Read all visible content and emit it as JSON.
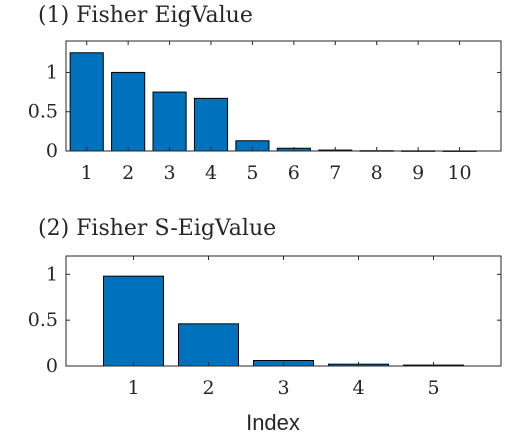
{
  "chart_data": [
    {
      "type": "bar",
      "title": "(1) Fisher EigValue",
      "xlabel": "",
      "ylabel": "",
      "categories": [
        "1",
        "2",
        "3",
        "4",
        "5",
        "6",
        "7",
        "8",
        "9",
        "10"
      ],
      "values": [
        1.25,
        1.0,
        0.75,
        0.67,
        0.13,
        0.035,
        0.012,
        0.004,
        0.002,
        0.001
      ],
      "ylim": [
        0,
        1.4
      ],
      "yticks": [
        "0",
        "0.5",
        "1"
      ],
      "grid": false,
      "bar_color": "#0072BD"
    },
    {
      "type": "bar",
      "title": "(2) Fisher S-EigValue",
      "xlabel": "Index",
      "ylabel": "",
      "categories": [
        "1",
        "2",
        "3",
        "4",
        "5"
      ],
      "values": [
        0.98,
        0.46,
        0.06,
        0.02,
        0.01
      ],
      "ylim": [
        0,
        1.2
      ],
      "yticks": [
        "0",
        "0.5",
        "1"
      ],
      "grid": false,
      "bar_color": "#0072BD"
    }
  ]
}
